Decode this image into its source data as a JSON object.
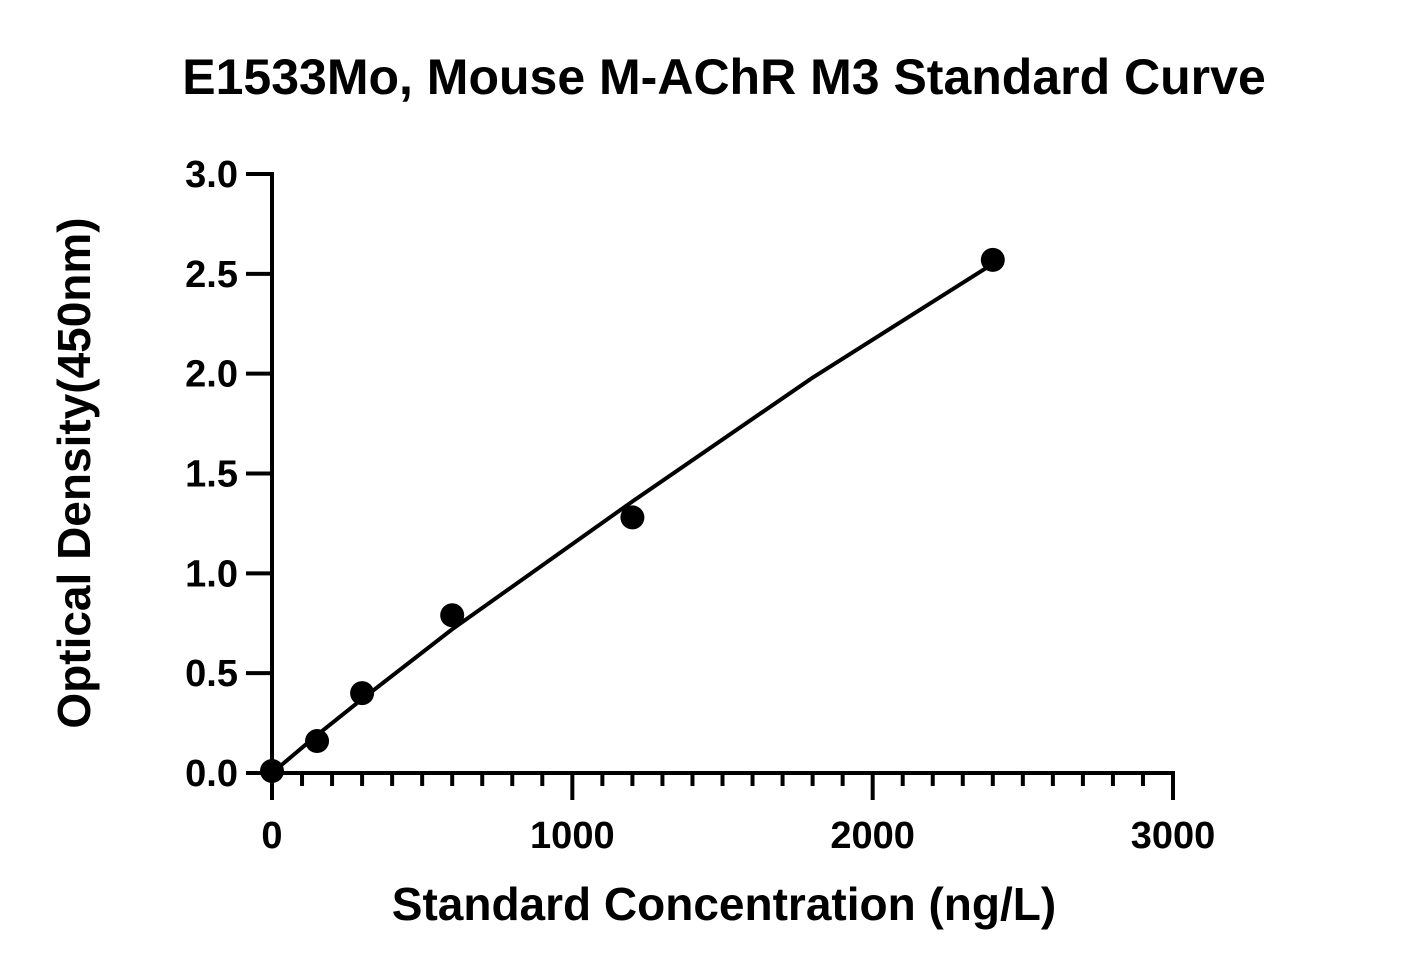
{
  "chart_data": {
    "type": "scatter",
    "title": "E1533Mo, Mouse M-AChR M3 Standard Curve",
    "xlabel": "Standard Concentration (ng/L)",
    "ylabel": "Optical Density(450nm)",
    "xlim": [
      0,
      3000
    ],
    "ylim": [
      0,
      3.0
    ],
    "x_ticks": [
      0,
      1000,
      2000,
      3000
    ],
    "x_tick_labels": [
      "0",
      "1000",
      "2000",
      "3000"
    ],
    "x_minor_step": 100,
    "y_ticks": [
      0,
      0.5,
      1.0,
      1.5,
      2.0,
      2.5,
      3.0
    ],
    "y_tick_labels": [
      "0.0",
      "0.5",
      "1.0",
      "1.5",
      "2.0",
      "2.5",
      "3.0"
    ],
    "grid": false,
    "series": [
      {
        "points": [
          {
            "x": 0,
            "y": 0.01
          },
          {
            "x": 150,
            "y": 0.16
          },
          {
            "x": 300,
            "y": 0.4
          },
          {
            "x": 600,
            "y": 0.79
          },
          {
            "x": 1200,
            "y": 1.28
          },
          {
            "x": 2400,
            "y": 2.57
          }
        ],
        "fit_curve": [
          {
            "x": 0,
            "y": 0.0
          },
          {
            "x": 150,
            "y": 0.19
          },
          {
            "x": 300,
            "y": 0.37
          },
          {
            "x": 600,
            "y": 0.72
          },
          {
            "x": 1200,
            "y": 1.36
          },
          {
            "x": 1800,
            "y": 1.98
          },
          {
            "x": 2400,
            "y": 2.55
          }
        ],
        "color": "#000000"
      }
    ]
  }
}
